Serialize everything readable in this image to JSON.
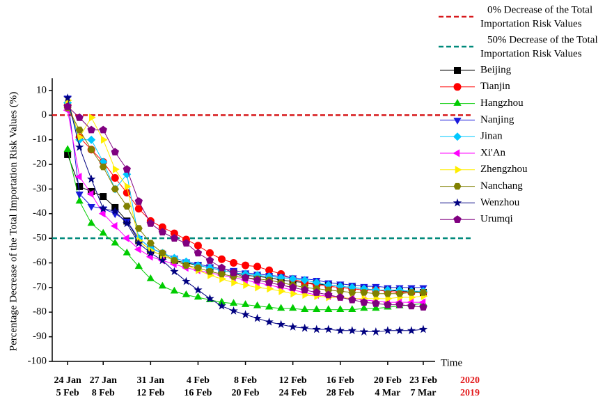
{
  "chart_data": {
    "type": "line",
    "y_label": "Percentage Decrease of the Total Importation Risk Values (%)",
    "x_label": "Time",
    "x": [
      0,
      1,
      2,
      3,
      4,
      5,
      6,
      7,
      8,
      9,
      10,
      11,
      12,
      13,
      14,
      15,
      16,
      17,
      18,
      19,
      20,
      21,
      22,
      23,
      24,
      25,
      26,
      27,
      28,
      29,
      30
    ],
    "xlim": [
      -1.3,
      31
    ],
    "xticks": [
      {
        "value": 0,
        "label": "24 Jan"
      },
      {
        "value": 3,
        "label": "27 Jan"
      },
      {
        "value": 7,
        "label": "31 Jan"
      },
      {
        "value": 11,
        "label": "4 Feb"
      },
      {
        "value": 15,
        "label": "8 Feb"
      },
      {
        "value": 19,
        "label": "12 Feb"
      },
      {
        "value": 23,
        "label": "16 Feb"
      },
      {
        "value": 27,
        "label": "20 Feb"
      },
      {
        "value": 30,
        "label": "23 Feb"
      }
    ],
    "xticks_second_row": [
      {
        "value": 0,
        "label": "5 Feb"
      },
      {
        "value": 3,
        "label": "8 Feb"
      },
      {
        "value": 7,
        "label": "12 Feb"
      },
      {
        "value": 11,
        "label": "16 Feb"
      },
      {
        "value": 15,
        "label": "20 Feb"
      },
      {
        "value": 19,
        "label": "24 Feb"
      },
      {
        "value": 23,
        "label": "28 Feb"
      },
      {
        "value": 27,
        "label": "4 Mar"
      },
      {
        "value": 30,
        "label": "7 Mar"
      }
    ],
    "row_years": [
      "2020",
      "2019"
    ],
    "year_color": "#e31a1c",
    "ylim": [
      -100,
      15
    ],
    "yticks": [
      10,
      0,
      -10,
      -20,
      -30,
      -40,
      -50,
      -60,
      -70,
      -80,
      -90,
      -100
    ],
    "reference_lines": [
      {
        "name_lines": [
          "0% Decrease of the Total",
          "Importation Risk Values"
        ],
        "value": 0,
        "color": "#d7191c"
      },
      {
        "name_lines": [
          "50% Decrease of the Total",
          "Importation Risk Values"
        ],
        "value": -50,
        "color": "#00897b"
      }
    ],
    "series": [
      {
        "name": "Beijing",
        "color": "#000000",
        "marker": "square",
        "values": [
          -16,
          -29,
          -31,
          -33,
          -37.5,
          -43,
          -51,
          -55,
          -57,
          -59,
          -60,
          -61,
          -62,
          -63,
          -64,
          -65,
          -65.5,
          -66,
          -67,
          -67.5,
          -68,
          -68.5,
          -69,
          -69.5,
          -70,
          -70.5,
          -71,
          -71,
          -71.5,
          -71.5,
          -72
        ]
      },
      {
        "name": "Tianjin",
        "color": "#ff0000",
        "marker": "circle",
        "values": [
          4,
          -9,
          -14,
          -19,
          -25.5,
          -31.5,
          -38,
          -43,
          -45.5,
          -48,
          -50.5,
          -53,
          -56,
          -58.5,
          -60,
          -61,
          -61.5,
          -63,
          -64.5,
          -66.5,
          -68,
          -69,
          -69.5,
          -70,
          -70.5,
          -71,
          -71,
          -71.5,
          -72,
          -72,
          -72
        ]
      },
      {
        "name": "Hangzhou",
        "color": "#00cc00",
        "marker": "triangle-up",
        "values": [
          -14,
          -35,
          -44,
          -48,
          -52,
          -56,
          -61.5,
          -66.5,
          -69.5,
          -71.5,
          -73,
          -74,
          -75,
          -76,
          -76.5,
          -77,
          -77.5,
          -78,
          -78.5,
          -78.5,
          -79,
          -79,
          -79,
          -79,
          -79,
          -78.5,
          -78.5,
          -78,
          -77.5,
          -77,
          -76.5
        ]
      },
      {
        "name": "Nanjing",
        "color": "#1a1adc",
        "marker": "triangle-down",
        "values": [
          7,
          -32,
          -37,
          -38,
          -40,
          -43,
          -50,
          -54,
          -56,
          -58,
          -59.5,
          -60.5,
          -61.5,
          -62.5,
          -63,
          -64,
          -64.5,
          -65,
          -65.5,
          -66,
          -66.5,
          -67,
          -68,
          -68.5,
          -69,
          -69.5,
          -69.5,
          -70,
          -70,
          -70,
          -70
        ]
      },
      {
        "name": "Jinan",
        "color": "#00c8ff",
        "marker": "diamond",
        "values": [
          5,
          -10,
          -10,
          -19,
          -30,
          -24,
          -50,
          -54,
          -56,
          -58,
          -59.5,
          -61,
          -62,
          -63,
          -64,
          -64.5,
          -65,
          -65.5,
          -66,
          -66.5,
          -67,
          -68,
          -69,
          -69.5,
          -70,
          -70.5,
          -71,
          -71,
          -71,
          -71.5,
          -71.5
        ]
      },
      {
        "name": "Xi'An",
        "color": "#ff00ff",
        "marker": "triangle-left",
        "values": [
          2,
          -25,
          -32,
          -40,
          -45,
          -50,
          -54.5,
          -57.5,
          -59,
          -60.5,
          -62,
          -63,
          -64,
          -65,
          -66,
          -67,
          -68,
          -69,
          -70,
          -71,
          -72,
          -73,
          -73.5,
          -74,
          -74.5,
          -75,
          -75.5,
          -76,
          -76,
          -76,
          -76
        ]
      },
      {
        "name": "Zhengzhou",
        "color": "#ffee00",
        "marker": "triangle-right",
        "values": [
          6,
          -9,
          -1,
          -10,
          -22,
          -29,
          -51,
          -55,
          -57,
          -59,
          -61,
          -63,
          -65,
          -66.5,
          -68,
          -69,
          -70,
          -70.5,
          -71.5,
          -72.5,
          -73,
          -73.5,
          -74,
          -74,
          -74.5,
          -74.5,
          -74.5,
          -74.5,
          -74,
          -74,
          -73.5
        ]
      },
      {
        "name": "Nanchang",
        "color": "#808000",
        "marker": "hexagon",
        "values": [
          3,
          -6,
          -14,
          -21,
          -30,
          -37,
          -46,
          -52,
          -56,
          -59,
          -61,
          -62,
          -63.5,
          -64.5,
          -65.5,
          -66,
          -66.5,
          -67,
          -68,
          -69,
          -70,
          -70.5,
          -71,
          -71.5,
          -72,
          -72,
          -72.5,
          -72.5,
          -72.5,
          -72,
          -72
        ]
      },
      {
        "name": "Wenzhou",
        "color": "#000080",
        "marker": "star",
        "values": [
          7,
          -13,
          -26,
          -38,
          -39,
          -44,
          -52,
          -56,
          -59,
          -63.5,
          -67.5,
          -71,
          -74.5,
          -77.5,
          -79.5,
          -81,
          -82.5,
          -84,
          -85,
          -86,
          -86.5,
          -87,
          -87,
          -87.5,
          -87.5,
          -88,
          -88,
          -87.5,
          -87.5,
          -87.5,
          -87
        ]
      },
      {
        "name": "Urumqi",
        "color": "#800080",
        "marker": "pentagon",
        "values": [
          3.5,
          -1,
          -6,
          -6,
          -15,
          -22,
          -35,
          -44,
          -47.5,
          -50,
          -52,
          -56,
          -59,
          -62,
          -64,
          -66,
          -67,
          -68,
          -69,
          -70,
          -71,
          -72,
          -73,
          -74,
          -75,
          -76,
          -76.5,
          -77,
          -77,
          -77.5,
          -78
        ]
      }
    ]
  }
}
